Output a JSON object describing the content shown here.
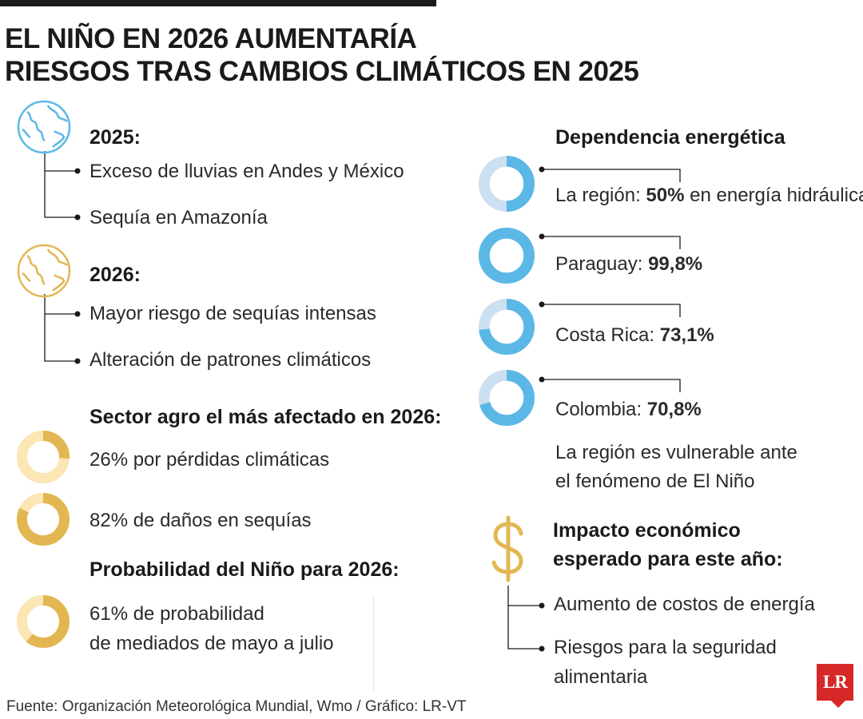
{
  "title": {
    "line1": "EL NIÑO EN 2026 AUMENTARÍA",
    "line2": "RIESGOS TRAS CAMBIOS CLIMÁTICOS EN 2025"
  },
  "y2025": {
    "heading": "2025:",
    "items": [
      "Exceso de lluvias en Andes y México",
      "Sequía en Amazonía"
    ]
  },
  "y2026": {
    "heading": "2026:",
    "items": [
      "Mayor riesgo de sequías intensas",
      "Alteración de patrones climáticos"
    ]
  },
  "agro": {
    "heading": "Sector agro el más afectado en 2026:",
    "items": [
      {
        "text": "26% por pérdidas climáticas",
        "percent": 26
      },
      {
        "text": "82% de daños en sequías",
        "percent": 82
      }
    ]
  },
  "probabilidad": {
    "heading": "Probabilidad del Niño para 2026:",
    "line1": "61% de probabilidad",
    "line2": "de mediados de mayo a julio",
    "percent": 61
  },
  "dependencia": {
    "heading": "Dependencia energética",
    "items": [
      {
        "label": "La región: ",
        "value": "50%",
        "suffix": " en energía hidráulica",
        "percent": 50
      },
      {
        "label": "Paraguay: ",
        "value": "99,8%",
        "suffix": "",
        "percent": 99.8
      },
      {
        "label": "Costa Rica: ",
        "value": "73,1%",
        "suffix": "",
        "percent": 73.1
      },
      {
        "label": "Colombia: ",
        "value": "70,8%",
        "suffix": "",
        "percent": 70.8
      }
    ],
    "note_line1": "La región es vulnerable ante",
    "note_line2": "el fenómeno de El Niño"
  },
  "impacto": {
    "icon": "dollar-icon",
    "heading_line1": "Impacto económico",
    "heading_line2": "esperado para este año:",
    "items": [
      "Aumento de costos de energía",
      "Riesgos para la seguridad",
      "alimentaria"
    ]
  },
  "source": "Fuente: Organización Meteorológica Mundial, Wmo / Gráfico: LR-VT",
  "logo": "LR",
  "colors": {
    "blue": "#5bb8e6",
    "blue_light": "#cde0f2",
    "gold": "#e2b752",
    "gold_light": "#fbe6b4",
    "red": "#d62828"
  }
}
